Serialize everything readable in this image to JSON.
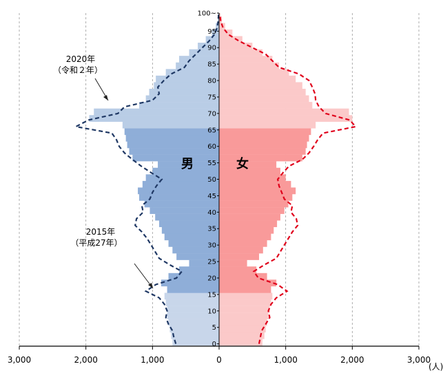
{
  "chart_data": {
    "type": "population-pyramid",
    "x_unit": "(人)",
    "x_ticks": [
      "3,000",
      "2,000",
      "1,000",
      "0",
      "1,000",
      "2,000",
      "3,000"
    ],
    "xlim": [
      -3000,
      3000
    ],
    "age_tick_labels": [
      "0",
      "5",
      "10",
      "15",
      "20",
      "25",
      "30",
      "35",
      "40",
      "45",
      "50",
      "55",
      "60",
      "65",
      "70",
      "75",
      "80",
      "85",
      "90",
      "95",
      "100~"
    ],
    "age_range": [
      0,
      100
    ],
    "grid": "vertical dashed",
    "labels": {
      "male": "男",
      "female": "女"
    },
    "annotations": [
      {
        "line1": "2020年",
        "line2": "（令和２年）",
        "series": "2020"
      },
      {
        "line1": "2015年",
        "line2": "（平成27年）",
        "series": "2015"
      }
    ],
    "age_bands": [
      {
        "name": "0-14",
        "male_color": "#c8d6ea",
        "female_color": "#fbc9c9"
      },
      {
        "name": "15-64",
        "male_color": "#8faed8",
        "female_color": "#f99a9a"
      },
      {
        "name": "65+",
        "male_color": "#b9cde6",
        "female_color": "#fbc9c9"
      }
    ],
    "series": [
      {
        "name": "2020",
        "style": "bars",
        "ages": [
          0,
          2,
          4,
          6,
          8,
          10,
          12,
          14,
          16,
          18,
          20,
          22,
          24,
          26,
          28,
          30,
          32,
          34,
          36,
          38,
          40,
          42,
          44,
          46,
          48,
          50,
          52,
          54,
          56,
          58,
          60,
          62,
          64,
          66,
          68,
          70,
          72,
          74,
          76,
          78,
          80,
          82,
          84,
          86,
          88,
          90,
          92,
          94,
          96,
          98,
          100
        ],
        "male": [
          700,
          720,
          740,
          760,
          780,
          780,
          800,
          820,
          780,
          870,
          760,
          600,
          450,
          640,
          700,
          760,
          820,
          860,
          900,
          960,
          1040,
          1120,
          1200,
          1220,
          1150,
          1100,
          1000,
          920,
          1300,
          1350,
          1380,
          1400,
          1420,
          1450,
          1950,
          1880,
          1200,
          1100,
          1050,
          980,
          950,
          800,
          650,
          600,
          450,
          320,
          200,
          110,
          50,
          20,
          10
        ],
        "female": [
          650,
          680,
          700,
          720,
          740,
          760,
          780,
          800,
          780,
          860,
          720,
          560,
          420,
          600,
          660,
          720,
          780,
          820,
          870,
          920,
          980,
          1040,
          1100,
          1150,
          1080,
          1000,
          920,
          860,
          1250,
          1300,
          1320,
          1350,
          1380,
          1450,
          2000,
          1950,
          1400,
          1350,
          1300,
          1250,
          1150,
          1050,
          900,
          800,
          650,
          500,
          350,
          200,
          90,
          40,
          20
        ]
      },
      {
        "name": "2015",
        "style": "dashed",
        "ages": [
          0,
          2,
          4,
          6,
          8,
          10,
          12,
          14,
          16,
          18,
          20,
          22,
          24,
          26,
          28,
          30,
          32,
          34,
          36,
          38,
          40,
          42,
          44,
          46,
          48,
          50,
          52,
          54,
          56,
          58,
          60,
          62,
          64,
          66,
          68,
          70,
          72,
          74,
          76,
          78,
          80,
          82,
          84,
          86,
          88,
          90,
          92,
          94,
          96,
          98,
          100
        ],
        "male": [
          650,
          680,
          700,
          760,
          800,
          780,
          820,
          900,
          1100,
          950,
          640,
          560,
          740,
          900,
          960,
          1020,
          1080,
          1160,
          1260,
          1240,
          1140,
          1160,
          1040,
          1000,
          940,
          860,
          1020,
          1170,
          1300,
          1420,
          1500,
          1540,
          1610,
          2150,
          1960,
          1520,
          1420,
          1000,
          900,
          920,
          830,
          720,
          520,
          450,
          350,
          250,
          150,
          70,
          30,
          15,
          8
        ],
        "female": [
          600,
          620,
          640,
          700,
          760,
          740,
          780,
          860,
          1020,
          880,
          590,
          520,
          680,
          860,
          920,
          980,
          1040,
          1100,
          1180,
          1160,
          1080,
          1100,
          980,
          940,
          900,
          880,
          960,
          1050,
          1250,
          1350,
          1420,
          1480,
          1560,
          2050,
          1960,
          1600,
          1500,
          1450,
          1440,
          1400,
          1350,
          1200,
          900,
          800,
          700,
          500,
          300,
          140,
          60,
          25,
          12
        ]
      }
    ]
  }
}
